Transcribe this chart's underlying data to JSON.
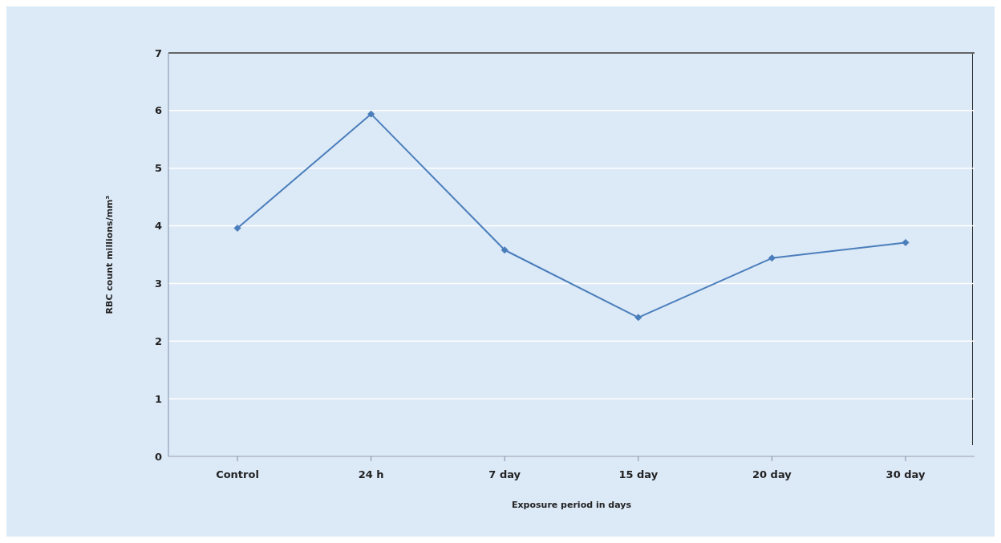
{
  "chart_data": {
    "type": "line",
    "xlabel": "Exposure period in days",
    "ylabel": "RBC count millions/mm³",
    "categories": [
      "Control",
      "24 h",
      "7 day",
      "15 day",
      "20 day",
      "30 day"
    ],
    "series": [
      {
        "color": "#4a7ebb",
        "values": [
          3.96,
          5.94,
          3.58,
          2.41,
          3.44,
          3.71
        ]
      }
    ],
    "ylim": [
      0,
      7
    ],
    "yticks": [
      0,
      1,
      2,
      3,
      4,
      5,
      6,
      7
    ],
    "grid": "y",
    "marker": "diamond",
    "line_style": "solid"
  }
}
